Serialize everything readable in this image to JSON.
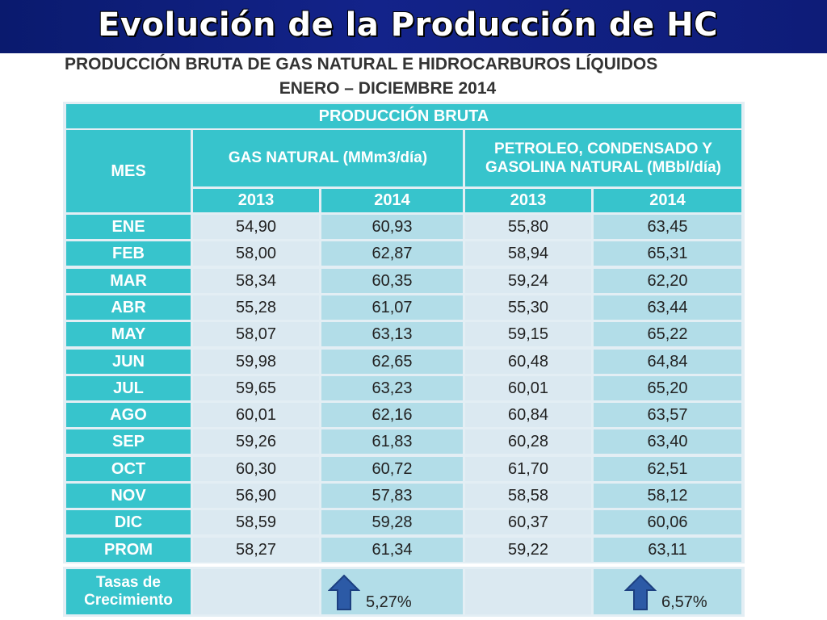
{
  "slide_title": "Evolución de la Producción de HC",
  "subtitle_line1": "PRODUCCIÓN BRUTA DE GAS NATURAL E HIDROCARBUROS LÍQUIDOS",
  "subtitle_line2": "ENERO – DICIEMBRE 2014",
  "table": {
    "header_top": "PRODUCCIÓN BRUTA",
    "col_mes": "MES",
    "group_gas": "GAS NATURAL (MMm3/día)",
    "group_liq": "PETROLEO, CONDENSADO Y GASOLINA NATURAL (MBbl/día)",
    "years": [
      "2013",
      "2014",
      "2013",
      "2014"
    ],
    "rows": [
      {
        "mes": "ENE",
        "gas_2013": "54,90",
        "gas_2014": "60,93",
        "liq_2013": "55,80",
        "liq_2014": "63,45"
      },
      {
        "mes": "FEB",
        "gas_2013": "58,00",
        "gas_2014": "62,87",
        "liq_2013": "58,94",
        "liq_2014": "65,31"
      },
      {
        "mes": "MAR",
        "gas_2013": "58,34",
        "gas_2014": "60,35",
        "liq_2013": "59,24",
        "liq_2014": "62,20"
      },
      {
        "mes": "ABR",
        "gas_2013": "55,28",
        "gas_2014": "61,07",
        "liq_2013": "55,30",
        "liq_2014": "63,44"
      },
      {
        "mes": "MAY",
        "gas_2013": "58,07",
        "gas_2014": "63,13",
        "liq_2013": "59,15",
        "liq_2014": "65,22"
      },
      {
        "mes": "JUN",
        "gas_2013": "59,98",
        "gas_2014": "62,65",
        "liq_2013": "60,48",
        "liq_2014": "64,84"
      },
      {
        "mes": "JUL",
        "gas_2013": "59,65",
        "gas_2014": "63,23",
        "liq_2013": "60,01",
        "liq_2014": "65,20"
      },
      {
        "mes": "AGO",
        "gas_2013": "60,01",
        "gas_2014": "62,16",
        "liq_2013": "60,84",
        "liq_2014": "63,57"
      },
      {
        "mes": "SEP",
        "gas_2013": "59,26",
        "gas_2014": "61,83",
        "liq_2013": "60,28",
        "liq_2014": "63,40"
      },
      {
        "mes": "OCT",
        "gas_2013": "60,30",
        "gas_2014": "60,72",
        "liq_2013": "61,70",
        "liq_2014": "62,51"
      },
      {
        "mes": "NOV",
        "gas_2013": "56,90",
        "gas_2014": "57,83",
        "liq_2013": "58,58",
        "liq_2014": "58,12"
      },
      {
        "mes": "DIC",
        "gas_2013": "58,59",
        "gas_2014": "59,28",
        "liq_2013": "60,37",
        "liq_2014": "60,06"
      },
      {
        "mes": "PROM",
        "gas_2013": "58,27",
        "gas_2014": "61,34",
        "liq_2013": "59,22",
        "liq_2014": "63,11"
      }
    ],
    "growth_label": "Tasas de Crecimiento",
    "growth_gas": "5,27%",
    "growth_liq": "6,57%"
  },
  "colors": {
    "banner": "#0e1c78",
    "header_teal": "#37c4cc",
    "cell_light": "#dbe9f1",
    "cell_blue": "#b2dde8",
    "arrow_blue": "#2c5aa6"
  },
  "icons": [
    "up-arrow-icon"
  ]
}
